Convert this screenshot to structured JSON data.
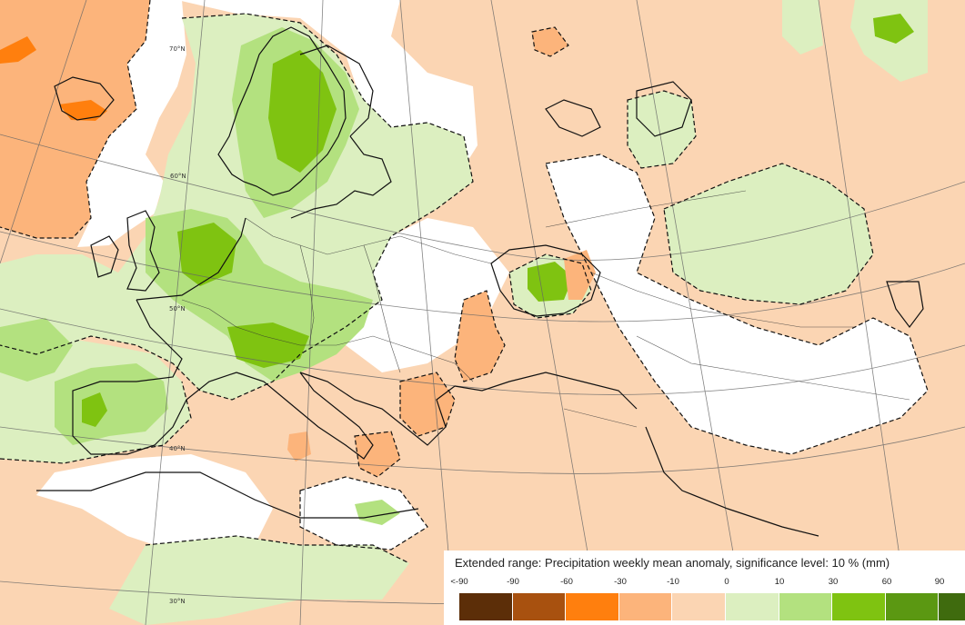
{
  "legend": {
    "title": "Extended range: Precipitation weekly mean anomaly, significance level: 10 % (mm)",
    "labels": [
      "<-90",
      "-90",
      "-60",
      "-30",
      "-10",
      "0",
      "10",
      "30",
      "60",
      "90"
    ],
    "colors": [
      "#5c2e08",
      "#a8510f",
      "#ff7f0e",
      "#fcb47b",
      "#fbd5b3",
      "#ffffff",
      "#dcefc0",
      "#b3e17f",
      "#7fc311",
      "#5b9812",
      "#3f6b0e"
    ]
  },
  "map": {
    "latitude_labels": [
      "70°N",
      "60°N",
      "50°N",
      "40°N",
      "30°N"
    ],
    "colors": {
      "land": "#fbd5b3",
      "anomaly_wet_light": "#dcefc0",
      "anomaly_wet": "#b3e17f",
      "anomaly_wet_strong": "#7fc311",
      "anomaly_dry": "#fcb47b",
      "anomaly_dry_strong": "#ff7f0e",
      "coastline": "#111111",
      "graticule": "#666666",
      "significance_contour": "#111111"
    }
  }
}
